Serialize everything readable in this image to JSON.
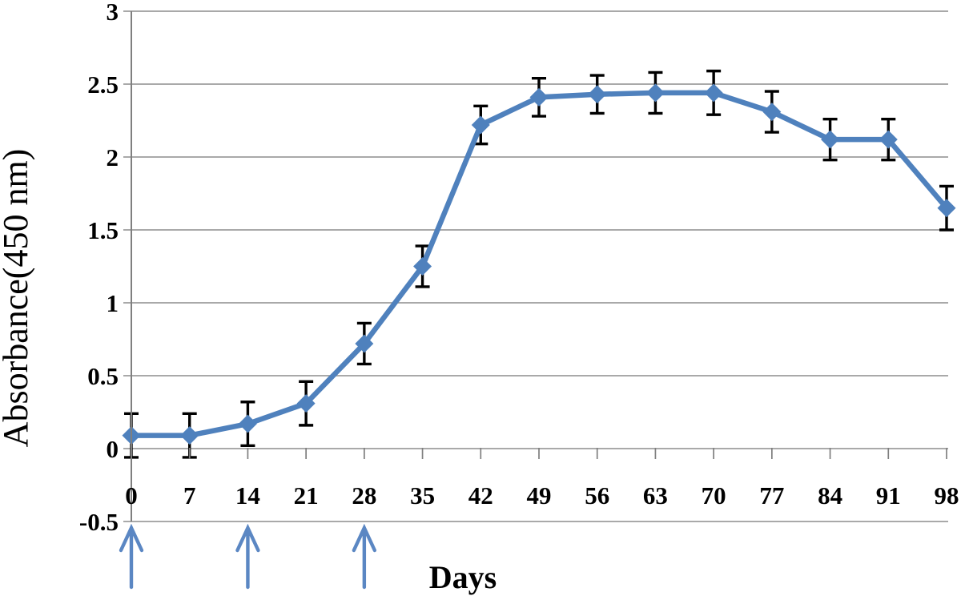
{
  "page": {
    "background": "#ffffff"
  },
  "chart_data": {
    "type": "line",
    "title": "",
    "xlabel": "Days",
    "ylabel": "Absorbance(450 nm)",
    "x": [
      0,
      7,
      14,
      21,
      28,
      35,
      42,
      49,
      56,
      63,
      70,
      77,
      84,
      91,
      98
    ],
    "x_tick_labels": [
      "0",
      "7",
      "14",
      "21",
      "28",
      "35",
      "42",
      "49",
      "56",
      "63",
      "70",
      "77",
      "84",
      "91",
      "98"
    ],
    "yticks": [
      -0.5,
      0,
      0.5,
      1,
      1.5,
      2,
      2.5,
      3
    ],
    "ytick_labels": [
      "-0.5",
      "0",
      "0.5",
      "1",
      "1.5",
      "2",
      "2.5",
      "3"
    ],
    "ylim": [
      -0.5,
      3
    ],
    "grid": true,
    "legend": "none",
    "series": [
      {
        "name": "absorbance",
        "marker": "diamond",
        "color": "#4f81bd",
        "values": [
          0.09,
          0.09,
          0.17,
          0.31,
          0.72,
          1.25,
          2.22,
          2.41,
          2.43,
          2.44,
          2.44,
          2.31,
          2.12,
          2.12,
          1.65
        ],
        "error_bars": [
          0.15,
          0.15,
          0.15,
          0.15,
          0.14,
          0.14,
          0.13,
          0.13,
          0.13,
          0.14,
          0.15,
          0.14,
          0.14,
          0.14,
          0.15
        ],
        "error_color": "#000000"
      }
    ],
    "annotations": {
      "up_arrows_at_x": [
        0,
        14,
        28
      ],
      "arrow_color": "#5b87c3"
    },
    "axis_color": "#7f7f7f",
    "grid_color": "#9d9d9d",
    "text_color": "#000000"
  }
}
